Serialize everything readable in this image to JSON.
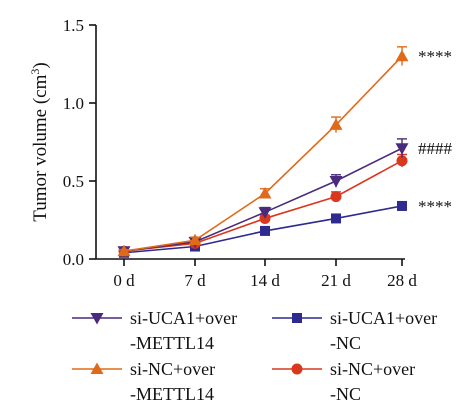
{
  "chart_data": {
    "type": "line",
    "xlabel": "",
    "ylabel": "Tumor volume (cm",
    "ylabel_sup": "3",
    "ylabel_close": ")",
    "categories": [
      "0 d",
      "7 d",
      "14 d",
      "21 d",
      "28 d"
    ],
    "ylim": [
      0,
      1.5
    ],
    "yticks": [
      0.0,
      0.5,
      1.0,
      1.5
    ],
    "ytick_labels": [
      "0.0",
      "0.5",
      "1.0",
      "1.5"
    ],
    "grid": false,
    "legend_position": "bottom",
    "series": [
      {
        "name": "si-UCA1+over-METTL14",
        "legend_lines": [
          "si-UCA1+over",
          "-METTL14"
        ],
        "color": "#4a2a7a",
        "marker": "triangle-down",
        "values": [
          0.05,
          0.11,
          0.3,
          0.5,
          0.71
        ],
        "errors": [
          0.01,
          0.02,
          0.03,
          0.04,
          0.06
        ],
        "annotation": "####"
      },
      {
        "name": "si-UCA1+over-NC",
        "legend_lines": [
          "si-UCA1+over",
          "-NC"
        ],
        "color": "#2e2a8f",
        "marker": "square",
        "values": [
          0.04,
          0.08,
          0.18,
          0.26,
          0.34
        ],
        "errors": [
          0.01,
          0.01,
          0.02,
          0.02,
          0.02
        ],
        "annotation": "****"
      },
      {
        "name": "si-NC+over-METTL14",
        "legend_lines": [
          "si-NC+over",
          "-METTL14"
        ],
        "color": "#e06a1a",
        "marker": "triangle-up",
        "values": [
          0.05,
          0.12,
          0.42,
          0.86,
          1.3
        ],
        "errors": [
          0.01,
          0.02,
          0.03,
          0.05,
          0.06
        ],
        "annotation": "****"
      },
      {
        "name": "si-NC+over-NC",
        "legend_lines": [
          "si-NC+over",
          "-NC"
        ],
        "color": "#d9381e",
        "marker": "circle",
        "values": [
          0.05,
          0.1,
          0.26,
          0.4,
          0.63
        ],
        "errors": [
          0.01,
          0.01,
          0.02,
          0.03,
          0.04
        ],
        "annotation": ""
      }
    ]
  }
}
